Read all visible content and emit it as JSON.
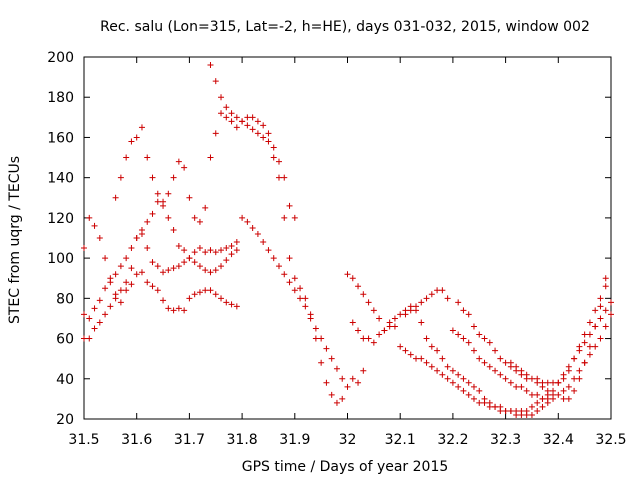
{
  "chart_data": {
    "type": "scatter",
    "title": "Rec. salu (Lon=315, Lat=-2, h=HE), days 031-032, 2015, window 002",
    "xlabel": "GPS time / Days of year 2015",
    "ylabel": "STEC from uqrg / TECUs",
    "xlim": [
      31.5,
      32.5
    ],
    "ylim": [
      20,
      200
    ],
    "xticks": [
      31.5,
      31.6,
      31.7,
      31.8,
      31.9,
      32,
      32.1,
      32.2,
      32.3,
      32.4,
      32.5
    ],
    "xtick_labels": [
      "31.5",
      "31.6",
      "31.7",
      "31.8",
      "31.9",
      "32",
      "32.1",
      "32.2",
      "32.3",
      "32.4",
      "32.5"
    ],
    "yticks": [
      20,
      40,
      60,
      80,
      100,
      120,
      140,
      160,
      180,
      200
    ],
    "ytick_labels": [
      "20",
      "40",
      "60",
      "80",
      "100",
      "120",
      "140",
      "160",
      "180",
      "200"
    ],
    "grid": false,
    "marker": "+",
    "color": "#cc0000",
    "x": [
      31.5,
      31.51,
      31.52,
      31.53,
      31.54,
      31.55,
      31.56,
      31.57,
      31.58,
      31.59,
      31.6,
      31.61,
      31.62,
      31.63,
      31.64,
      31.65,
      31.66,
      31.67,
      31.68,
      31.69,
      31.7,
      31.71,
      31.72,
      31.73,
      31.74,
      31.75,
      31.76,
      31.77,
      31.78,
      31.79,
      31.5,
      31.51,
      31.52,
      31.53,
      31.54,
      31.55,
      31.56,
      31.57,
      31.58,
      31.59,
      31.6,
      31.61,
      31.62,
      31.63,
      31.64,
      31.65,
      31.66,
      31.67,
      31.68,
      31.69,
      31.7,
      31.71,
      31.72,
      31.73,
      31.74,
      31.75,
      31.76,
      31.77,
      31.78,
      31.79,
      31.5,
      31.51,
      31.52,
      31.53,
      31.54,
      31.55,
      31.56,
      31.57,
      31.58,
      31.59,
      31.6,
      31.61,
      31.62,
      31.63,
      31.64,
      31.65,
      31.66,
      31.67,
      31.68,
      31.69,
      31.7,
      31.71,
      31.72,
      31.73,
      31.74,
      31.75,
      31.76,
      31.77,
      31.78,
      31.79,
      31.56,
      31.57,
      31.58,
      31.59,
      31.6,
      31.61,
      31.62,
      31.63,
      31.64,
      31.65,
      31.66,
      31.67,
      31.68,
      31.69,
      31.7,
      31.71,
      31.72,
      31.73,
      31.74,
      31.75,
      31.76,
      31.77,
      31.78,
      31.79,
      31.8,
      31.81,
      31.82,
      31.83,
      31.84,
      31.85,
      31.86,
      31.87,
      31.88,
      31.89,
      31.9,
      31.74,
      31.75,
      31.76,
      31.77,
      31.78,
      31.79,
      31.8,
      31.81,
      31.82,
      31.83,
      31.84,
      31.85,
      31.86,
      31.87,
      31.88,
      31.89,
      31.9,
      31.91,
      31.92,
      31.93,
      31.94,
      31.95,
      31.96,
      31.97,
      31.98,
      31.99,
      31.8,
      31.81,
      31.82,
      31.83,
      31.84,
      31.85,
      31.86,
      31.87,
      31.88,
      31.89,
      31.9,
      31.91,
      31.92,
      31.93,
      31.94,
      31.95,
      31.96,
      31.97,
      31.98,
      31.99,
      32.0,
      32.01,
      32.02,
      32.03,
      32.0,
      32.01,
      32.02,
      32.03,
      32.04,
      32.05,
      32.06,
      32.07,
      32.08,
      32.09,
      32.1,
      32.11,
      32.12,
      32.13,
      32.14,
      32.15,
      32.16,
      32.17,
      32.18,
      32.19,
      32.2,
      32.21,
      32.22,
      32.23,
      32.24,
      32.25,
      32.26,
      32.27,
      32.28,
      32.29,
      32.3,
      32.31,
      32.32,
      32.33,
      32.34,
      32.35,
      32.36,
      32.37,
      32.38,
      32.1,
      32.11,
      32.12,
      32.13,
      32.14,
      32.15,
      32.16,
      32.17,
      32.18,
      32.19,
      32.2,
      32.21,
      32.22,
      32.23,
      32.24,
      32.25,
      32.26,
      32.27,
      32.28,
      32.29,
      32.3,
      32.31,
      32.32,
      32.33,
      32.34,
      32.35,
      32.36,
      32.37,
      32.38,
      32.39,
      32.4,
      32.41,
      32.42,
      32.43,
      32.44,
      32.45,
      32.46,
      32.47,
      32.48,
      32.49,
      32.5,
      32.2,
      32.21,
      32.22,
      32.23,
      32.24,
      32.25,
      32.26,
      32.27,
      32.28,
      32.29,
      32.3,
      32.31,
      32.32,
      32.33,
      32.34,
      32.35,
      32.36,
      32.37,
      32.38,
      32.39,
      32.4,
      32.41,
      32.42,
      32.43,
      32.44,
      32.45,
      32.46,
      32.47,
      32.48,
      32.49,
      32.5,
      32.3,
      32.31,
      32.32,
      32.33,
      32.34,
      32.35,
      32.36,
      32.37,
      32.38,
      32.39,
      32.4,
      32.41,
      32.42,
      32.43,
      32.44,
      32.45,
      32.46,
      32.47,
      32.48,
      32.49,
      32.01,
      32.02,
      32.03,
      32.04,
      32.05,
      32.06,
      32.07,
      32.08,
      32.09,
      32.11,
      32.12,
      32.13,
      32.14,
      32.15,
      32.16,
      32.17,
      32.18,
      32.19,
      32.21,
      32.22,
      32.23,
      32.24,
      32.25,
      32.26,
      32.27,
      32.28,
      32.29,
      32.31,
      32.32,
      32.33,
      32.34,
      32.36,
      32.37,
      32.38,
      32.39,
      32.41,
      32.42,
      32.43,
      32.44,
      32.45,
      32.46,
      32.47,
      32.48,
      32.49
    ],
    "y": [
      60,
      60,
      65,
      68,
      72,
      76,
      80,
      78,
      84,
      87,
      92,
      93,
      88,
      86,
      84,
      79,
      75,
      74,
      75,
      74,
      80,
      82,
      83,
      84,
      84,
      82,
      80,
      78,
      77,
      76,
      72,
      70,
      75,
      79,
      85,
      90,
      92,
      96,
      100,
      105,
      110,
      112,
      105,
      98,
      96,
      93,
      94,
      95,
      96,
      98,
      100,
      103,
      105,
      103,
      104,
      103,
      104,
      105,
      106,
      108,
      105,
      120,
      116,
      110,
      100,
      88,
      82,
      84,
      88,
      95,
      110,
      114,
      118,
      122,
      128,
      126,
      120,
      114,
      106,
      104,
      100,
      98,
      96,
      94,
      93,
      94,
      96,
      99,
      102,
      104,
      130,
      140,
      150,
      158,
      160,
      165,
      150,
      140,
      132,
      128,
      132,
      140,
      148,
      145,
      130,
      120,
      118,
      125,
      150,
      162,
      172,
      175,
      172,
      170,
      168,
      166,
      164,
      162,
      160,
      158,
      155,
      148,
      140,
      126,
      120,
      196,
      188,
      180,
      170,
      168,
      165,
      168,
      170,
      170,
      168,
      166,
      162,
      150,
      140,
      120,
      100,
      90,
      85,
      80,
      72,
      65,
      60,
      55,
      50,
      45,
      40,
      120,
      118,
      115,
      112,
      108,
      104,
      100,
      96,
      92,
      88,
      84,
      80,
      76,
      70,
      60,
      48,
      38,
      32,
      28,
      30,
      36,
      40,
      38,
      44,
      92,
      90,
      86,
      82,
      78,
      74,
      70,
      64,
      68,
      66,
      72,
      74,
      76,
      74,
      68,
      60,
      56,
      54,
      50,
      46,
      44,
      42,
      40,
      38,
      36,
      34,
      30,
      28,
      26,
      26,
      24,
      24,
      22,
      22,
      22,
      22,
      24,
      26,
      28,
      56,
      54,
      52,
      50,
      50,
      48,
      46,
      44,
      42,
      40,
      38,
      36,
      34,
      32,
      30,
      28,
      28,
      26,
      26,
      24,
      24,
      24,
      24,
      24,
      24,
      26,
      28,
      30,
      32,
      34,
      38,
      42,
      46,
      50,
      54,
      58,
      62,
      66,
      70,
      74,
      78,
      64,
      62,
      60,
      58,
      54,
      50,
      48,
      46,
      44,
      42,
      40,
      38,
      36,
      36,
      34,
      32,
      32,
      30,
      30,
      30,
      32,
      34,
      36,
      40,
      44,
      48,
      52,
      56,
      60,
      66,
      72,
      48,
      46,
      44,
      42,
      42,
      40,
      40,
      38,
      38,
      38,
      38,
      40,
      44,
      50,
      56,
      62,
      68,
      74,
      80,
      86,
      68,
      64,
      60,
      60,
      58,
      62,
      64,
      66,
      70,
      72,
      74,
      76,
      78,
      80,
      82,
      84,
      84,
      80,
      78,
      74,
      72,
      66,
      62,
      60,
      58,
      54,
      50,
      48,
      46,
      44,
      40,
      38,
      36,
      34,
      32,
      30,
      30,
      34,
      40,
      48,
      56,
      66,
      76,
      90
    ]
  }
}
